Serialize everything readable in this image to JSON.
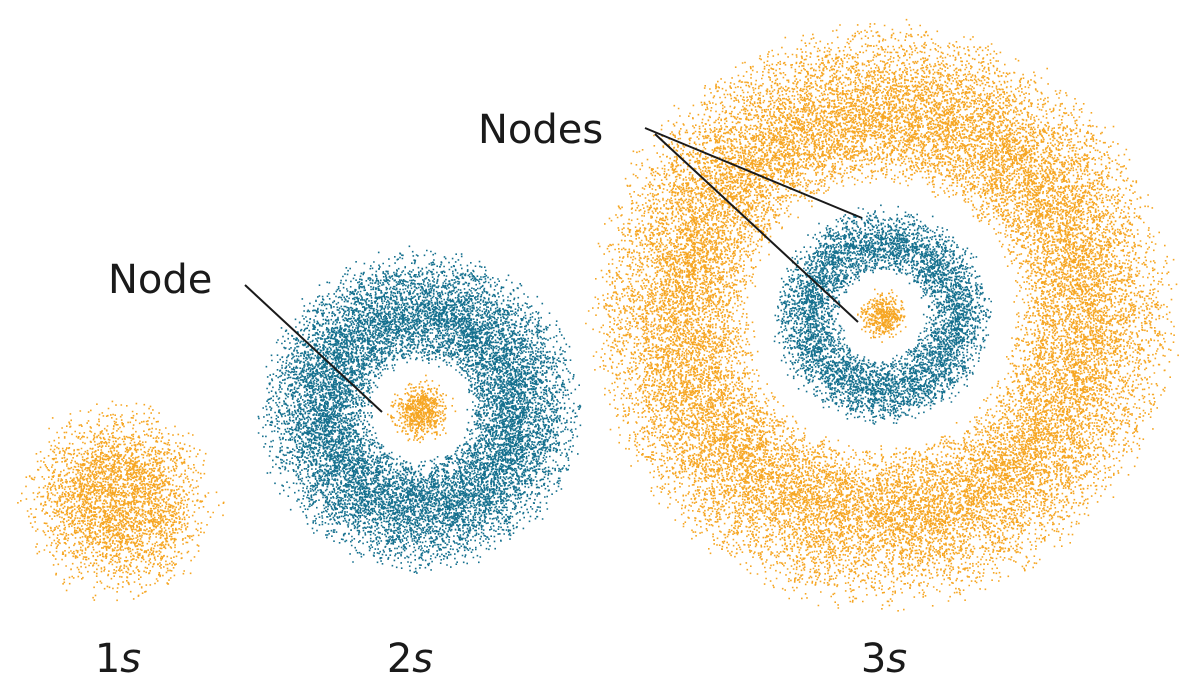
{
  "annotations": {
    "node": "Node",
    "nodes": "Nodes"
  },
  "orbitals": [
    {
      "number": "1",
      "letter": "s"
    },
    {
      "number": "2",
      "letter": "s"
    },
    {
      "number": "3",
      "letter": "s"
    }
  ]
}
